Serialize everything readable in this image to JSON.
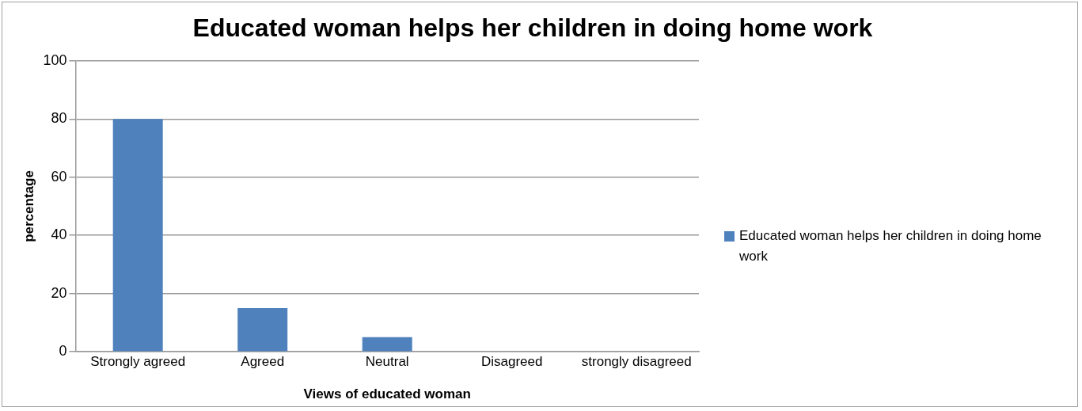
{
  "chart_data": {
    "type": "bar",
    "title": "Educated woman helps her children in doing home work",
    "xlabel": "Views of educated woman",
    "ylabel": "percentage",
    "categories": [
      "Strongly agreed",
      "Agreed",
      "Neutral",
      "Disagreed",
      "strongly disagreed"
    ],
    "series": [
      {
        "name": "Educated woman helps her children in doing home work",
        "color": "#4f81bd",
        "values": [
          80,
          15,
          5,
          0,
          0
        ]
      }
    ],
    "ylim": [
      0,
      100
    ],
    "yticks": [
      0,
      20,
      40,
      60,
      80,
      100
    ],
    "grid": "y",
    "legend": "right"
  }
}
